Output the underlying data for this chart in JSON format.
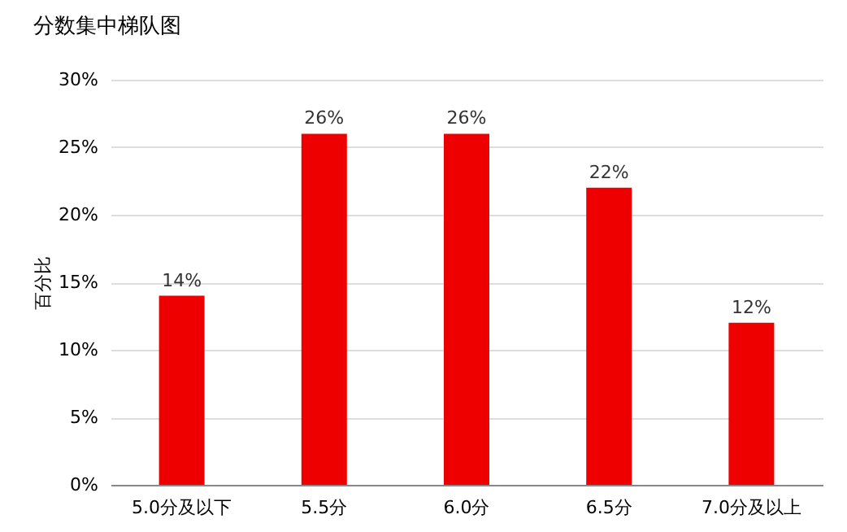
{
  "chart_data": {
    "type": "bar",
    "title": "分数集中梯队图",
    "ylabel": "百分比",
    "categories": [
      "5.0分及以下",
      "5.5分",
      "6.0分",
      "6.5分",
      "7.0分及以上"
    ],
    "values": [
      14,
      26,
      26,
      22,
      12
    ],
    "value_labels": [
      "14%",
      "26%",
      "26%",
      "22%",
      "12%"
    ],
    "color": "#ee0000",
    "ylim": [
      0,
      30
    ],
    "yticks": [
      {
        "value": 0,
        "label": "0%"
      },
      {
        "value": 5,
        "label": "5%"
      },
      {
        "value": 10,
        "label": "10%"
      },
      {
        "value": 15,
        "label": "15%"
      },
      {
        "value": 20,
        "label": "20%"
      },
      {
        "value": 25,
        "label": "25%"
      },
      {
        "value": 30,
        "label": "30%"
      }
    ],
    "grid": "y"
  }
}
